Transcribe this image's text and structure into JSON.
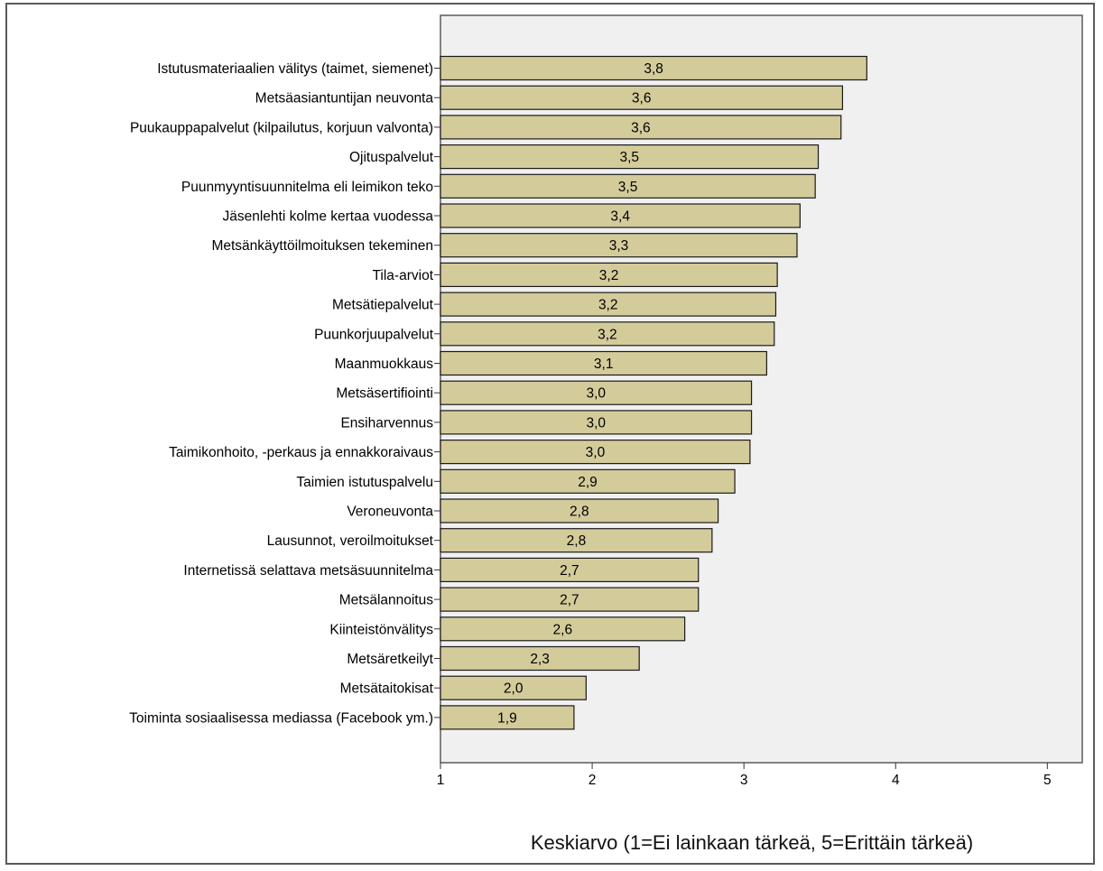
{
  "chart_data": {
    "type": "bar",
    "orientation": "horizontal",
    "categories": [
      "Istutusmateriaalien välitys (taimet, siemenet)",
      "Metsäasiantuntijan neuvonta",
      "Puukauppapalvelut (kilpailutus, korjuun valvonta)",
      "Ojituspalvelut",
      "Puunmyyntisuunnitelma eli leimikon teko",
      "Jäsenlehti kolme kertaa vuodessa",
      "Metsänkäyttöilmoituksen tekeminen",
      "Tila-arviot",
      "Metsätiepalvelut",
      "Puunkorjuupalvelut",
      "Maanmuokkaus",
      "Metsäsertifiointi",
      "Ensiharvennus",
      "Taimikonhoito, -perkaus ja ennakkoraivaus",
      "Taimien istutuspalvelu",
      "Veroneuvonta",
      "Lausunnot, veroilmoitukset",
      "Internetissä selattava metsäsuunnitelma",
      "Metsälannoitus",
      "Kiinteistönvälitys",
      "Metsäretkeilyt",
      "Metsätaitokisat",
      "Toiminta sosiaalisessa mediassa (Facebook ym.)"
    ],
    "values": [
      3.81,
      3.65,
      3.64,
      3.49,
      3.47,
      3.37,
      3.35,
      3.22,
      3.21,
      3.2,
      3.15,
      3.05,
      3.05,
      3.04,
      2.94,
      2.83,
      2.79,
      2.7,
      2.7,
      2.61,
      2.31,
      1.96,
      1.88
    ],
    "value_labels": [
      "3,8",
      "3,6",
      "3,6",
      "3,5",
      "3,5",
      "3,4",
      "3,3",
      "3,2",
      "3,2",
      "3,2",
      "3,1",
      "3,0",
      "3,0",
      "3,0",
      "2,9",
      "2,8",
      "2,8",
      "2,7",
      "2,7",
      "2,6",
      "2,3",
      "2,0",
      "1,9"
    ],
    "xlabel": "Keskiarvo (1=Ei lainkaan tärkeä, 5=Erittäin tärkeä)",
    "ylabel": "",
    "title": "",
    "xlim": [
      1,
      5.23
    ],
    "xticks": [
      "1",
      "2",
      "3",
      "4",
      "5"
    ],
    "grid": false,
    "colors": {
      "bar_fill": "#d3cb9a",
      "bar_stroke": "#1a1a1a",
      "plot_background": "#f0f0f0",
      "plot_border": "#5a5a5a"
    }
  }
}
